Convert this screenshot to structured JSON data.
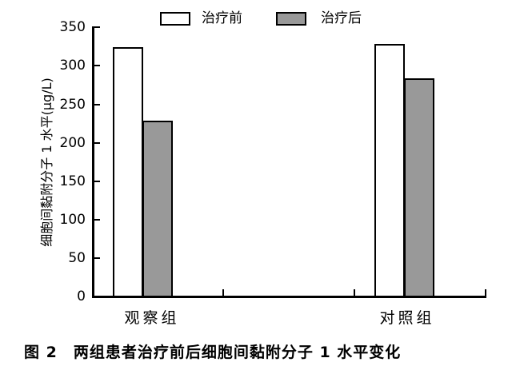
{
  "caption": "图 2　两组患者治疗前后细胞间黏附分子 1 水平变化",
  "colors": {
    "background": "#ffffff",
    "axis": "#000000",
    "bar_before_fill": "#ffffff",
    "bar_after_fill": "#999999",
    "bar_border": "#000000",
    "text": "#000000"
  },
  "legend": {
    "items": [
      {
        "label": "治疗前",
        "fill": "#ffffff"
      },
      {
        "label": "治疗后",
        "fill": "#999999"
      }
    ]
  },
  "chart_data": {
    "type": "bar",
    "title": "",
    "caption": "图 2　两组患者治疗前后细胞间黏附分子 1 水平变化",
    "categories": [
      "观察组",
      "对照组"
    ],
    "series": [
      {
        "name": "治疗前",
        "fill": "#ffffff",
        "values": [
          325,
          330
        ]
      },
      {
        "name": "治疗后",
        "fill": "#999999",
        "values": [
          230,
          285
        ]
      }
    ],
    "xlabel": "",
    "ylabel": "细胞间黏附分子 1 水平(μg/L)",
    "ylim": [
      0,
      350
    ],
    "yticks": [
      0,
      50,
      100,
      150,
      200,
      250,
      300,
      350
    ],
    "grid": false,
    "legend_position": "top"
  }
}
